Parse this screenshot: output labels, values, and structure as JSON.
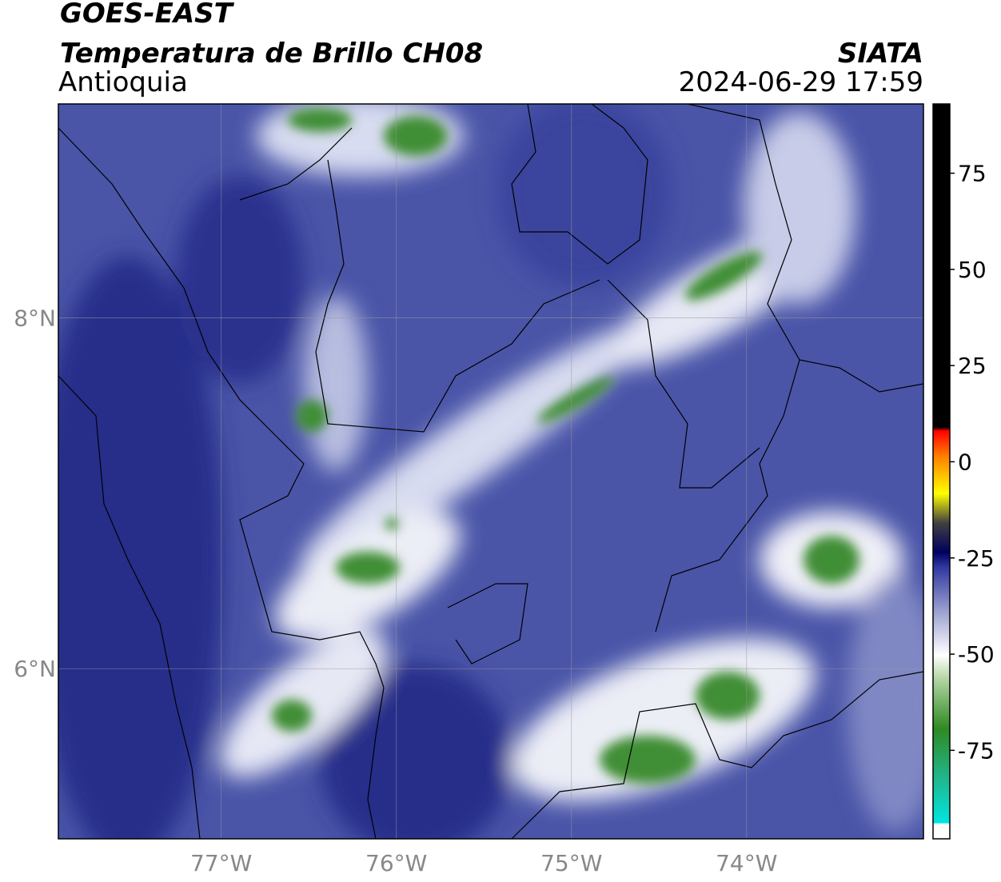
{
  "header": {
    "satellite": "GOES-EAST",
    "product": "Temperatura de Brillo CH08",
    "region": "Antioquia",
    "agency": "SIATA",
    "datetime": "2024-06-29 17:59"
  },
  "map": {
    "lonlim": [
      -77.93,
      -72.99
    ],
    "latlim": [
      5.03,
      9.22
    ],
    "lonticks": [
      {
        "value": -77,
        "label": "77°W"
      },
      {
        "value": -76,
        "label": "76°W"
      },
      {
        "value": -75,
        "label": "75°W"
      },
      {
        "value": -74,
        "label": "74°W"
      }
    ],
    "latticks": [
      {
        "value": 8,
        "label": "8°N"
      },
      {
        "value": 6,
        "label": "6°N"
      }
    ],
    "grid": true
  },
  "colorbar": {
    "lim": [
      -98,
      93
    ],
    "ticks": [
      75,
      50,
      25,
      0,
      -25,
      -50,
      -75
    ]
  }
}
